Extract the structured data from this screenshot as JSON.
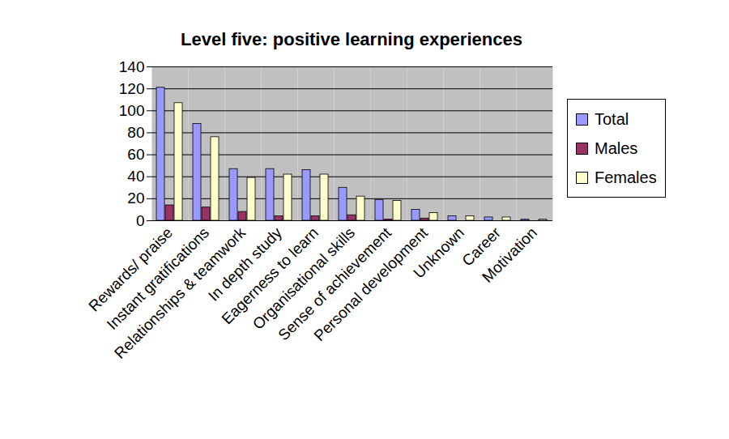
{
  "chart_data": {
    "type": "bar",
    "title": "Level five: positive learning experiences",
    "categories": [
      "Rewards/ praise",
      "Instant gratifications",
      "Relationships & teamwork",
      "In depth study",
      "Eagerness to learn",
      "Organisational skills",
      "Sense of achievement",
      "Personal development",
      "Unknown",
      "Career",
      "Motivation"
    ],
    "series": [
      {
        "name": "Total",
        "color": "#9999ff",
        "values": [
          121,
          88,
          47,
          47,
          46,
          30,
          19,
          10,
          4,
          3,
          1
        ]
      },
      {
        "name": "Males",
        "color": "#993366",
        "values": [
          14,
          12,
          8,
          4,
          4,
          5,
          1,
          2,
          0,
          0,
          0
        ]
      },
      {
        "name": "Females",
        "color": "#ffffcc",
        "values": [
          107,
          76,
          39,
          42,
          42,
          22,
          18,
          7,
          4,
          3,
          1
        ]
      }
    ],
    "ylim": [
      0,
      140
    ],
    "yticks": [
      0,
      20,
      40,
      60,
      80,
      100,
      120,
      140
    ],
    "grid": true,
    "legend": "right"
  }
}
